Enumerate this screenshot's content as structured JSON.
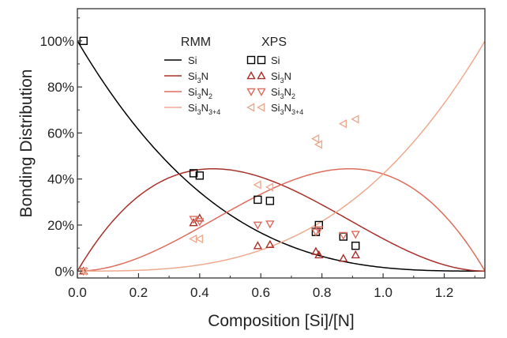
{
  "chart_data": {
    "type": "line",
    "xlabel": "Composition [Si]/[N]",
    "ylabel": "Bonding Distribution",
    "xlim": [
      0,
      1.333
    ],
    "ylim": [
      -0.03,
      1.14
    ],
    "x_ticks": [
      0.0,
      0.2,
      0.4,
      0.6,
      0.8,
      1.0,
      1.2
    ],
    "x_tick_labels": [
      "0.0",
      "0.2",
      "0.4",
      "0.6",
      "0.8",
      "1.0",
      "1.2"
    ],
    "y_ticks": [
      0,
      0.2,
      0.4,
      0.6,
      0.8,
      1.0
    ],
    "y_tick_labels": [
      "0%",
      "20%",
      "40%",
      "60%",
      "80%",
      "100%"
    ],
    "grid": false,
    "legend_position": "top-center",
    "legend": {
      "rmm_header": "RMM",
      "xps_header": "XPS"
    },
    "series": [
      {
        "name": "Si",
        "label_main": "Si",
        "label_sub": "",
        "label_tail": "",
        "color": "#000000",
        "marker": "square",
        "model": {
          "k": 0
        },
        "points": [
          [
            0.02,
            1.0
          ],
          [
            0.38,
            0.425
          ],
          [
            0.4,
            0.415
          ],
          [
            0.59,
            0.31
          ],
          [
            0.63,
            0.305
          ],
          [
            0.78,
            0.17
          ],
          [
            0.79,
            0.2
          ],
          [
            0.87,
            0.15
          ],
          [
            0.91,
            0.11
          ]
        ]
      },
      {
        "name": "Si3N",
        "label_main": "Si",
        "label_sub": "3",
        "label_tail": "N",
        "color": "#a8302a",
        "marker": "triangle-up",
        "model": {
          "k": 1
        },
        "points": [
          [
            0.02,
            0.0
          ],
          [
            0.38,
            0.21
          ],
          [
            0.4,
            0.23
          ],
          [
            0.59,
            0.11
          ],
          [
            0.63,
            0.115
          ],
          [
            0.78,
            0.085
          ],
          [
            0.79,
            0.07
          ],
          [
            0.87,
            0.055
          ],
          [
            0.91,
            0.07
          ]
        ]
      },
      {
        "name": "Si3N2",
        "label_main": "Si",
        "label_sub": "3",
        "label_tail": "N",
        "label_sub2": "2",
        "color": "#dd6d5c",
        "marker": "triangle-down",
        "model": {
          "k": 2
        },
        "points": [
          [
            0.02,
            0.0
          ],
          [
            0.38,
            0.225
          ],
          [
            0.4,
            0.215
          ],
          [
            0.59,
            0.2
          ],
          [
            0.63,
            0.205
          ],
          [
            0.78,
            0.17
          ],
          [
            0.79,
            0.18
          ],
          [
            0.87,
            0.155
          ],
          [
            0.91,
            0.16
          ]
        ]
      },
      {
        "name": "Si3N3+4",
        "label_main": "Si",
        "label_sub": "3",
        "label_tail": "N",
        "label_sub2": "3+4",
        "color": "#eeaa8e",
        "marker": "triangle-left",
        "model": {
          "k": 3
        },
        "points": [
          [
            0.02,
            0.0
          ],
          [
            0.38,
            0.14
          ],
          [
            0.4,
            0.14
          ],
          [
            0.59,
            0.375
          ],
          [
            0.63,
            0.365
          ],
          [
            0.78,
            0.575
          ],
          [
            0.79,
            0.55
          ],
          [
            0.87,
            0.64
          ],
          [
            0.91,
            0.66
          ]
        ]
      }
    ]
  }
}
